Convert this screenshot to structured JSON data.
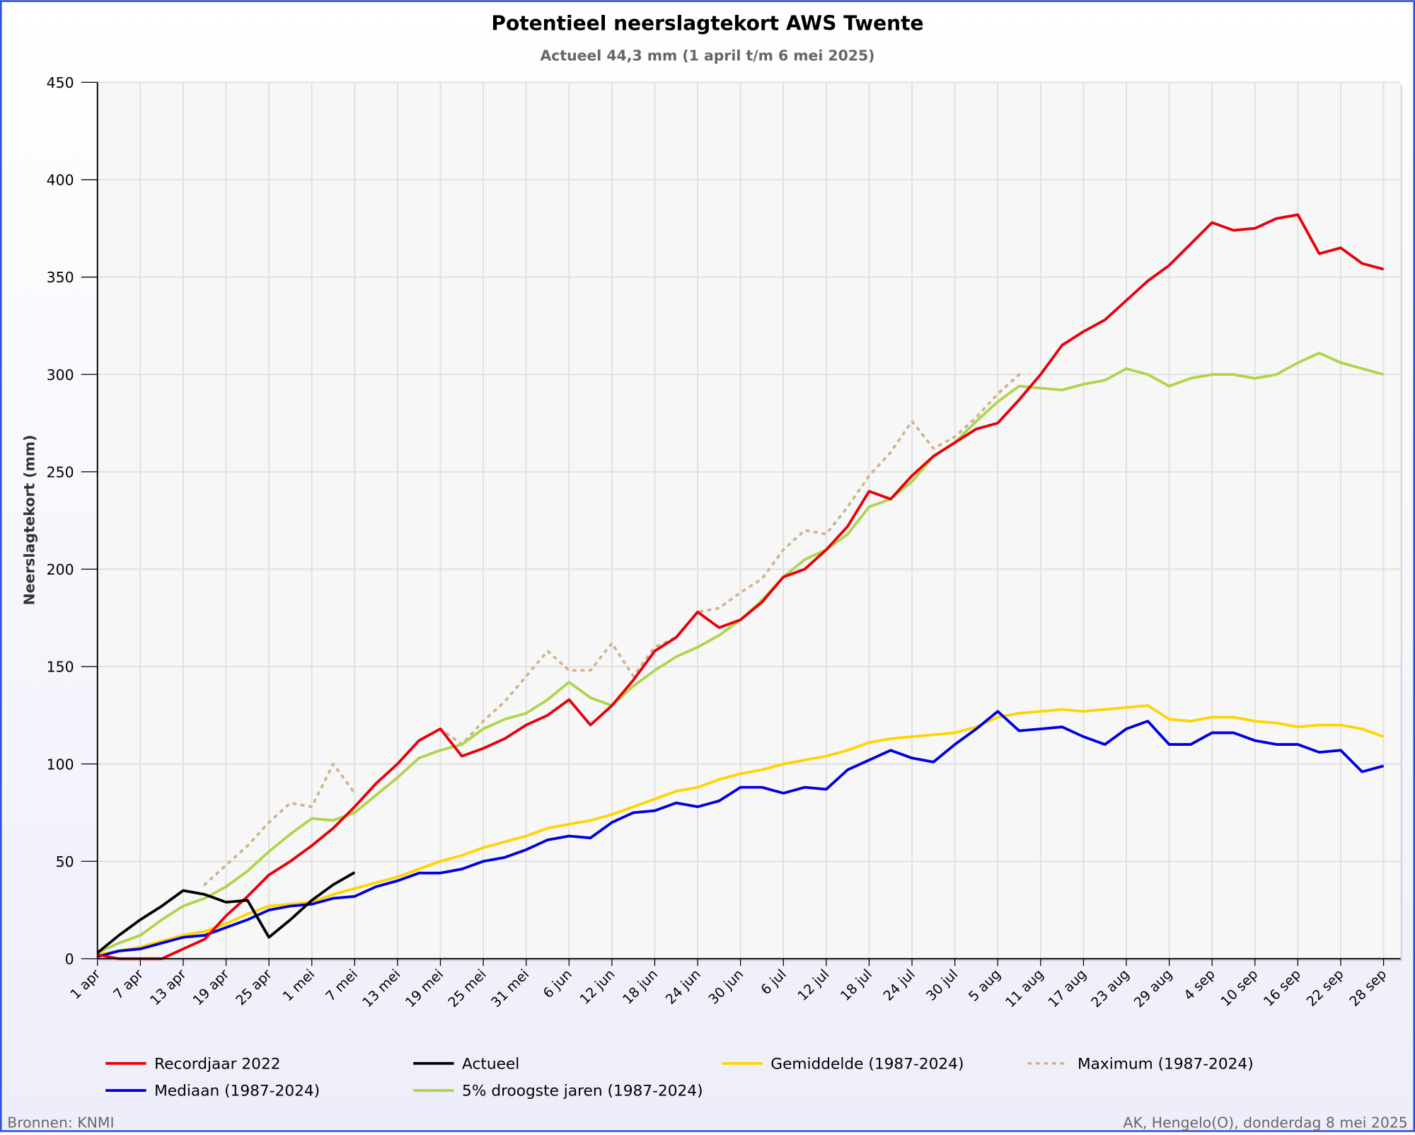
{
  "chart_data": {
    "type": "line",
    "title": "Potentieel neerslagtekort AWS Twente",
    "subtitle": "Actueel 44,3 mm (1 april t/m 6 mei 2025)",
    "y_label": "Neerslagtekort (mm)",
    "source": "Bronnen: KNMI",
    "credit": "AK, Hengelo(O), donderdag 8 mei 2025",
    "x": [
      0,
      3,
      6,
      9,
      12,
      15,
      18,
      21,
      24,
      27,
      30,
      33,
      36,
      39,
      42,
      45,
      48,
      51,
      54,
      57,
      60,
      63,
      66,
      69,
      72,
      75,
      78,
      81,
      84,
      87,
      90,
      93,
      96,
      99,
      102,
      105,
      108,
      111,
      114,
      117,
      120,
      123,
      126,
      129,
      132,
      135,
      138,
      141,
      144,
      147,
      150,
      153,
      156,
      159,
      162,
      165,
      168,
      171,
      174,
      177,
      180
    ],
    "xlim": [
      0,
      182
    ],
    "xticks": [
      {
        "value": 0,
        "label": "1 apr"
      },
      {
        "value": 6,
        "label": "7 apr"
      },
      {
        "value": 12,
        "label": "13 apr"
      },
      {
        "value": 18,
        "label": "19 apr"
      },
      {
        "value": 24,
        "label": "25 apr"
      },
      {
        "value": 30,
        "label": "1 mei"
      },
      {
        "value": 36,
        "label": "7 mei"
      },
      {
        "value": 42,
        "label": "13 mei"
      },
      {
        "value": 48,
        "label": "19 mei"
      },
      {
        "value": 54,
        "label": "25 mei"
      },
      {
        "value": 60,
        "label": "31 mei"
      },
      {
        "value": 66,
        "label": "6 jun"
      },
      {
        "value": 72,
        "label": "12 jun"
      },
      {
        "value": 78,
        "label": "18 jun"
      },
      {
        "value": 84,
        "label": "24 jun"
      },
      {
        "value": 90,
        "label": "30 jun"
      },
      {
        "value": 96,
        "label": "6 jul"
      },
      {
        "value": 102,
        "label": "12 jul"
      },
      {
        "value": 108,
        "label": "18 jul"
      },
      {
        "value": 114,
        "label": "24 jul"
      },
      {
        "value": 120,
        "label": "30 jul"
      },
      {
        "value": 126,
        "label": "5 aug"
      },
      {
        "value": 132,
        "label": "11 aug"
      },
      {
        "value": 138,
        "label": "17 aug"
      },
      {
        "value": 144,
        "label": "23 aug"
      },
      {
        "value": 150,
        "label": "29 aug"
      },
      {
        "value": 156,
        "label": "4 sep"
      },
      {
        "value": 162,
        "label": "10 sep"
      },
      {
        "value": 168,
        "label": "16 sep"
      },
      {
        "value": 174,
        "label": "22 sep"
      },
      {
        "value": 180,
        "label": "28 sep"
      }
    ],
    "ylim": [
      0,
      450
    ],
    "yticks": [
      0,
      50,
      100,
      150,
      200,
      250,
      300,
      350,
      400,
      450
    ],
    "grid": true,
    "series": [
      {
        "name": "Recordjaar 2022",
        "color": "#e8000b",
        "values": [
          2,
          0,
          0,
          0,
          5,
          10,
          22,
          32,
          43,
          50,
          58,
          67,
          78,
          90,
          100,
          112,
          118,
          104,
          108,
          113,
          120,
          125,
          133,
          120,
          130,
          143,
          158,
          165,
          178,
          170,
          174,
          183,
          196,
          200,
          210,
          222,
          240,
          236,
          248,
          258,
          265,
          272,
          275,
          287,
          300,
          315,
          322,
          328,
          338,
          348,
          356,
          367,
          378,
          374,
          375,
          380,
          382,
          362,
          365,
          357,
          354
        ]
      },
      {
        "name": "Actueel",
        "color": "#000000",
        "values": [
          3,
          12,
          20,
          27,
          35,
          33,
          29,
          30,
          11,
          20,
          30,
          38,
          44.3,
          null,
          null,
          null,
          null,
          null,
          null,
          null,
          null,
          null,
          null,
          null,
          null,
          null,
          null,
          null,
          null,
          null,
          null,
          null,
          null,
          null,
          null,
          null,
          null,
          null,
          null,
          null,
          null,
          null,
          null,
          null,
          null,
          null,
          null,
          null,
          null,
          null,
          null,
          null,
          null,
          null,
          null,
          null,
          null,
          null,
          null,
          null,
          null
        ]
      },
      {
        "name": "Gemiddelde (1987-2024)",
        "color": "#ffd400",
        "values": [
          2,
          4,
          6,
          9,
          12,
          14,
          18,
          23,
          27,
          28,
          29,
          33,
          36,
          39,
          42,
          46,
          50,
          53,
          57,
          60,
          63,
          67,
          69,
          71,
          74,
          78,
          82,
          86,
          88,
          92,
          95,
          97,
          100,
          102,
          104,
          107,
          111,
          113,
          114,
          115,
          116,
          119,
          124,
          126,
          127,
          128,
          127,
          128,
          129,
          130,
          123,
          122,
          124,
          124,
          122,
          121,
          119,
          120,
          120,
          118,
          114
        ]
      },
      {
        "name": "Maximum (1987-2024)",
        "color": "#d2b48c",
        "style": "dotted",
        "values": [
          null,
          null,
          null,
          null,
          null,
          38,
          48,
          58,
          70,
          80,
          78,
          100,
          85,
          null,
          null,
          null,
          118,
          110,
          122,
          132,
          145,
          158,
          148,
          148,
          162,
          145,
          160,
          165,
          178,
          180,
          188,
          195,
          210,
          220,
          218,
          232,
          248,
          260,
          276,
          262,
          268,
          278,
          290,
          300,
          null,
          null,
          null,
          null,
          null,
          null,
          null,
          null,
          null,
          null,
          null,
          null,
          null,
          null,
          null,
          null,
          null
        ]
      },
      {
        "name": "Mediaan (1987-2024)",
        "color": "#0000e0",
        "values": [
          1,
          4,
          5,
          8,
          11,
          12,
          16,
          20,
          25,
          27,
          28,
          31,
          32,
          37,
          40,
          44,
          44,
          46,
          50,
          52,
          56,
          61,
          63,
          62,
          70,
          75,
          76,
          80,
          78,
          81,
          88,
          88,
          85,
          88,
          87,
          97,
          102,
          107,
          103,
          101,
          110,
          118,
          127,
          117,
          118,
          119,
          114,
          110,
          118,
          122,
          110,
          110,
          116,
          116,
          112,
          110,
          110,
          106,
          107,
          96,
          99
        ]
      },
      {
        "name": "5% droogste jaren (1987-2024)",
        "color": "#b0d44c",
        "values": [
          3,
          8,
          12,
          20,
          27,
          31,
          37,
          45,
          55,
          64,
          72,
          71,
          75,
          84,
          93,
          103,
          107,
          110,
          118,
          123,
          126,
          133,
          142,
          134,
          130,
          140,
          148,
          155,
          160,
          166,
          174,
          184,
          196,
          205,
          210,
          218,
          232,
          236,
          245,
          258,
          265,
          276,
          286,
          294,
          293,
          292,
          295,
          297,
          303,
          300,
          294,
          298,
          300,
          300,
          298,
          300,
          306,
          311,
          306,
          303,
          300
        ]
      }
    ]
  }
}
